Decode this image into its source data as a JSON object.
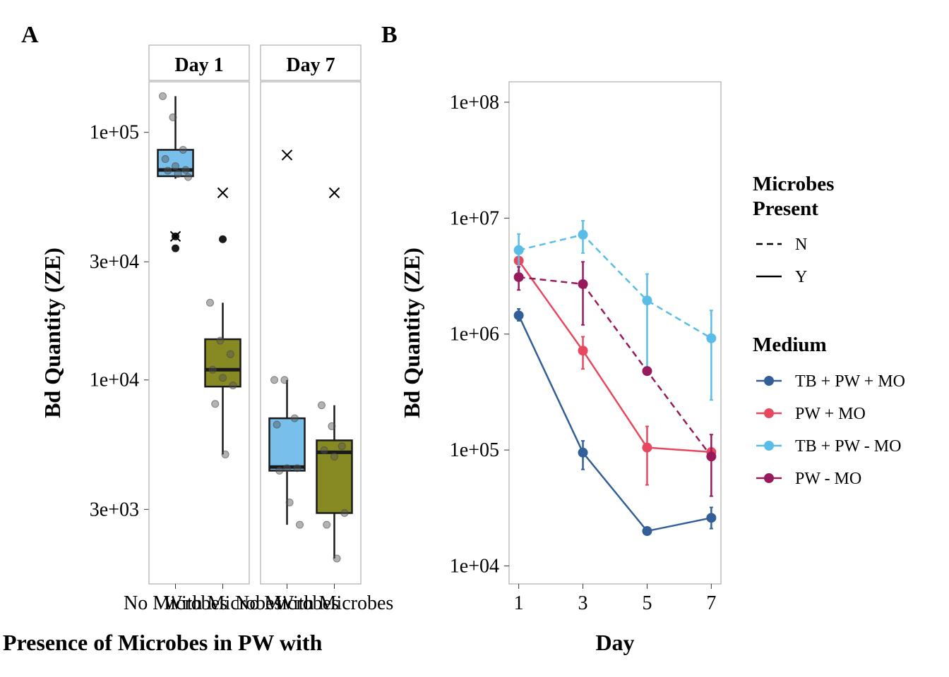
{
  "chart_data": [
    {
      "panel": "A",
      "type": "box",
      "facets": [
        "Day 1",
        "Day 7"
      ],
      "categories": [
        "No Microbes",
        "With Microbes"
      ],
      "ylabel": "Bd Quantity (ZE)",
      "xlabel": "Presence of Microbes in PW with",
      "yscale": "log",
      "ylim": [
        1500,
        160000
      ],
      "yticks": [
        3000,
        10000,
        30000,
        100000
      ],
      "ytick_labels": [
        "3e+03",
        "1e+04",
        "3e+04",
        "1e+05"
      ],
      "colors": {
        "No Microbes": "#78BFEB",
        "With Microbes": "#878A23"
      },
      "boxes": [
        {
          "facet": "Day 1",
          "category": "No Microbes",
          "lower_whisker": 65000,
          "q1": 66500,
          "median": 70500,
          "q3": 85000,
          "upper_whisker": 140000,
          "mean": 38000,
          "points": [
            140000,
            115000,
            85000,
            78000,
            73000,
            70500,
            70000,
            68000,
            66000
          ],
          "outliers": [
            34000,
            38000
          ]
        },
        {
          "facet": "Day 1",
          "category": "With Microbes",
          "lower_whisker": 5000,
          "q1": 9400,
          "median": 11000,
          "q3": 14600,
          "upper_whisker": 20500,
          "mean": 57000,
          "points": [
            20500,
            14400,
            12700,
            11000,
            10200,
            9500,
            8000,
            5000
          ],
          "outliers": [
            37000
          ]
        },
        {
          "facet": "Day 7",
          "category": "No Microbes",
          "lower_whisker": 2600,
          "q1": 4300,
          "median": 4450,
          "q3": 7000,
          "upper_whisker": 10000,
          "mean": 81000,
          "points": [
            10000,
            10000,
            7000,
            6600,
            4400,
            4400,
            4300,
            3200,
            2600
          ],
          "outliers": []
        },
        {
          "facet": "Day 7",
          "category": "With Microbes",
          "lower_whisker": 1900,
          "q1": 2900,
          "median": 5100,
          "q3": 5700,
          "upper_whisker": 7900,
          "mean": 57000,
          "points": [
            7900,
            6500,
            5400,
            5200,
            4900,
            2900,
            2600,
            1900
          ],
          "outliers": []
        }
      ]
    },
    {
      "panel": "B",
      "type": "line",
      "x": [
        1,
        3,
        5,
        7
      ],
      "xlabel": "Day",
      "ylabel": "Bd Quantity (ZE)",
      "yscale": "log",
      "ylim": [
        7000,
        150000000
      ],
      "yticks": [
        10000,
        100000,
        1000000,
        10000000,
        100000000
      ],
      "ytick_labels": [
        "1e+04",
        "1e+05",
        "1e+06",
        "1e+07",
        "1e+08"
      ],
      "xticks": [
        1,
        3,
        5,
        7
      ],
      "xtick_labels": [
        "1",
        "3",
        "5",
        "7"
      ],
      "legend_linetype_title": "Microbes Present",
      "legend_linetype_title_lines": [
        "Microbes",
        "Present"
      ],
      "legend_linetype": [
        {
          "label": "N",
          "dash": "dashed"
        },
        {
          "label": "Y",
          "dash": "solid"
        }
      ],
      "legend_color_title": "Medium",
      "series": [
        {
          "name": "TB + PW + MO",
          "color": "#325F97",
          "dashed": false,
          "values": [
            1450000,
            95000,
            20000,
            26000
          ],
          "err_low": [
            1300000,
            68000,
            19500,
            21000
          ],
          "err_high": [
            1650000,
            120000,
            20500,
            32000
          ]
        },
        {
          "name": "PW + MO",
          "color": "#E7485F",
          "dashed": false,
          "values": [
            4300000,
            720000,
            105000,
            96000
          ],
          "err_low": [
            4100000,
            500000,
            50000,
            88000
          ],
          "err_high": [
            4500000,
            950000,
            160000,
            104000
          ]
        },
        {
          "name": "TB + PW - MO",
          "color": "#5ABDE8",
          "dashed": true,
          "values": [
            5300000,
            7200000,
            1950000,
            920000
          ],
          "err_low": [
            3500000,
            5000000,
            460000,
            270000
          ],
          "err_high": [
            7300000,
            9500000,
            3300000,
            1600000
          ]
        },
        {
          "name": "PW - MO",
          "color": "#971B5C",
          "dashed": true,
          "values": [
            3100000,
            2700000,
            480000,
            88000
          ],
          "err_low": [
            2400000,
            1200000,
            450000,
            40000
          ],
          "err_high": [
            3800000,
            4200000,
            510000,
            136000
          ]
        }
      ]
    }
  ]
}
